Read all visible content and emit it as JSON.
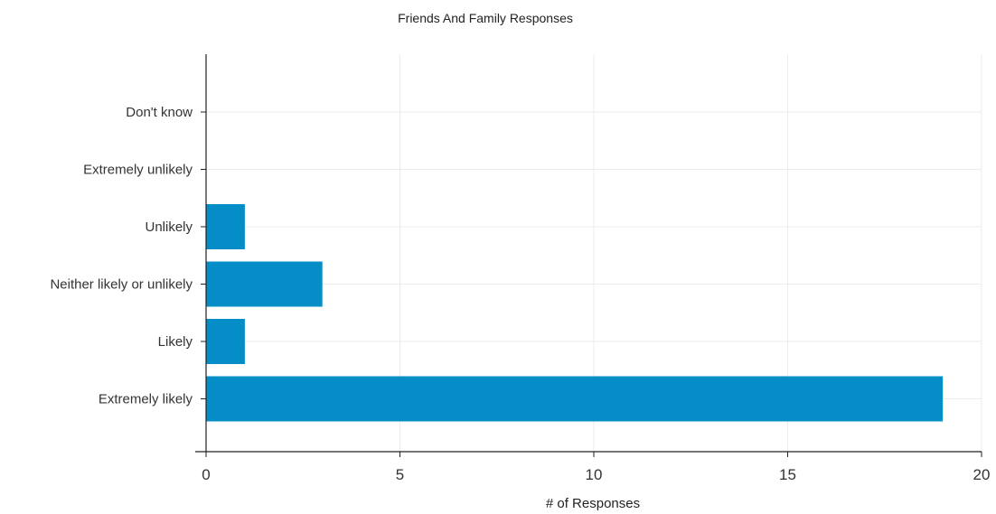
{
  "chart_data": {
    "type": "bar",
    "orientation": "horizontal",
    "title": "Friends And Family Responses",
    "xlabel": "# of Responses",
    "ylabel": "",
    "categories": [
      "Don't know",
      "Extremely unlikely",
      "Unlikely",
      "Neither likely or unlikely",
      "Likely",
      "Extremely likely"
    ],
    "values": [
      0,
      0,
      1,
      3,
      1,
      19
    ],
    "xlim": [
      0,
      20
    ],
    "xticks": [
      0,
      5,
      10,
      15,
      20
    ],
    "grid": true,
    "legend": "none",
    "bar_color": "#058dc7",
    "grid_color": "#ececec"
  }
}
